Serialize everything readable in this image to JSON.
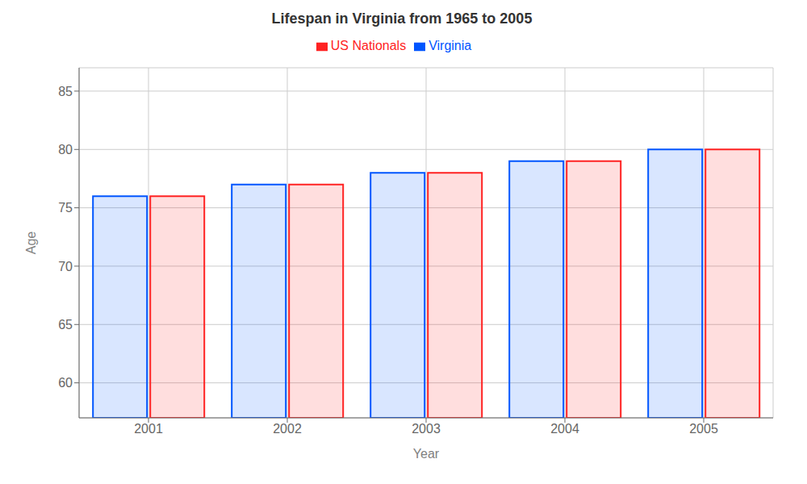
{
  "chart_data": {
    "type": "bar",
    "title": "Lifespan in Virginia from 1965 to 2005",
    "x_label": "Year",
    "y_label": "Age",
    "categories": [
      "2001",
      "2002",
      "2003",
      "2004",
      "2005"
    ],
    "series": [
      {
        "name": "Virginia",
        "color": "#0055ff",
        "values": [
          76,
          77,
          78,
          79,
          80
        ]
      },
      {
        "name": "US Nationals",
        "color": "#ff2222",
        "values": [
          76,
          77,
          78,
          79,
          80
        ]
      }
    ],
    "ylim": [
      57,
      87
    ],
    "yticks": [
      60,
      65,
      70,
      75,
      80,
      85
    ],
    "grid": true,
    "legend": "top"
  }
}
